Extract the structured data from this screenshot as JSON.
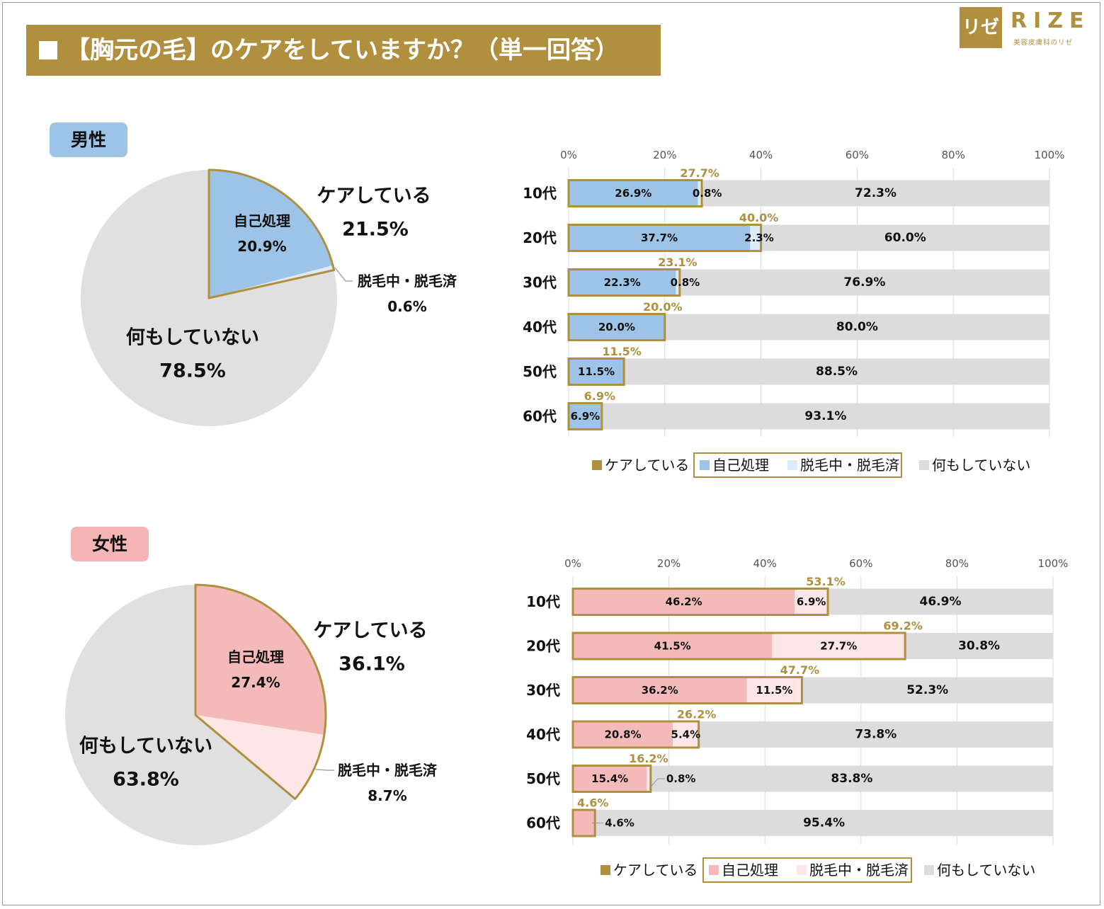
{
  "title": "【胸元の毛】のケアをしていますか？（単一回答）",
  "logo": {
    "mark": "リゼ",
    "name": "RIZE",
    "sub": "美容皮膚科のリゼ"
  },
  "colors": {
    "gold": "#b08f3e",
    "male_self": "#9dc3e6",
    "male_removal": "#ddebf7",
    "female_self": "#f4b9b9",
    "female_removal": "#fde6e6",
    "none": "#dcdcdc",
    "none_pie": "#e0e0e0"
  },
  "chart_data": [
    {
      "type": "pie",
      "title": "男性",
      "slices": [
        {
          "label": "自己処理",
          "value": 20.9,
          "value_label": "20.9%"
        },
        {
          "label": "脱毛中・脱毛済",
          "value": 0.6,
          "value_label": "0.6%"
        },
        {
          "label": "何もしていない",
          "value": 78.5,
          "value_label": "78.5%"
        }
      ],
      "group_label": "ケアしている",
      "group_value_label": "21.5%"
    },
    {
      "type": "bar",
      "orientation": "horizontal-stacked",
      "title": "男性",
      "categories": [
        "10代",
        "20代",
        "30代",
        "40代",
        "50代",
        "60代"
      ],
      "series": [
        {
          "name": "自己処理",
          "values": [
            26.9,
            37.7,
            22.3,
            20.0,
            11.5,
            6.9
          ],
          "labels": [
            "26.9%",
            "37.7%",
            "22.3%",
            "20.0%",
            "11.5%",
            "6.9%"
          ]
        },
        {
          "name": "脱毛中・脱毛済",
          "values": [
            0.8,
            2.3,
            0.8,
            0,
            0,
            0
          ],
          "labels": [
            "0.8%",
            "2.3%",
            "0.8%",
            "",
            "",
            ""
          ]
        },
        {
          "name": "何もしていない",
          "values": [
            72.3,
            60.0,
            76.9,
            80.0,
            88.5,
            93.1
          ],
          "labels": [
            "72.3%",
            "60.0%",
            "76.9%",
            "80.0%",
            "88.5%",
            "93.1%"
          ]
        }
      ],
      "care_totals": [
        27.7,
        40.0,
        23.1,
        20.0,
        11.5,
        6.9
      ],
      "care_labels": [
        "27.7%",
        "40.0%",
        "23.1%",
        "20.0%",
        "11.5%",
        "6.9%"
      ],
      "xlim": [
        0,
        100
      ],
      "ticks": [
        "0%",
        "20%",
        "40%",
        "60%",
        "80%",
        "100%"
      ],
      "legend": [
        "ケアしている",
        "自己処理",
        "脱毛中・脱毛済",
        "何もしていない"
      ]
    },
    {
      "type": "pie",
      "title": "女性",
      "slices": [
        {
          "label": "自己処理",
          "value": 27.4,
          "value_label": "27.4%"
        },
        {
          "label": "脱毛中・脱毛済",
          "value": 8.7,
          "value_label": "8.7%"
        },
        {
          "label": "何もしていない",
          "value": 63.8,
          "value_label": "63.8%"
        }
      ],
      "group_label": "ケアしている",
      "group_value_label": "36.1%"
    },
    {
      "type": "bar",
      "orientation": "horizontal-stacked",
      "title": "女性",
      "categories": [
        "10代",
        "20代",
        "30代",
        "40代",
        "50代",
        "60代"
      ],
      "series": [
        {
          "name": "自己処理",
          "values": [
            46.2,
            41.5,
            36.2,
            20.8,
            15.4,
            4.6
          ],
          "labels": [
            "46.2%",
            "41.5%",
            "36.2%",
            "20.8%",
            "15.4%",
            "4.6%"
          ]
        },
        {
          "name": "脱毛中・脱毛済",
          "values": [
            6.9,
            27.7,
            11.5,
            5.4,
            0.8,
            0
          ],
          "labels": [
            "6.9%",
            "27.7%",
            "11.5%",
            "5.4%",
            "0.8%",
            ""
          ]
        },
        {
          "name": "何もしていない",
          "values": [
            46.9,
            30.8,
            52.3,
            73.8,
            83.8,
            95.4
          ],
          "labels": [
            "46.9%",
            "30.8%",
            "52.3%",
            "73.8%",
            "83.8%",
            "95.4%"
          ]
        }
      ],
      "care_totals": [
        53.1,
        69.2,
        47.7,
        26.2,
        16.2,
        4.6
      ],
      "care_labels": [
        "53.1%",
        "69.2%",
        "47.7%",
        "26.2%",
        "16.2%",
        "4.6%"
      ],
      "xlim": [
        0,
        100
      ],
      "ticks": [
        "0%",
        "20%",
        "40%",
        "60%",
        "80%",
        "100%"
      ],
      "legend": [
        "ケアしている",
        "自己処理",
        "脱毛中・脱毛済",
        "何もしていない"
      ]
    }
  ]
}
